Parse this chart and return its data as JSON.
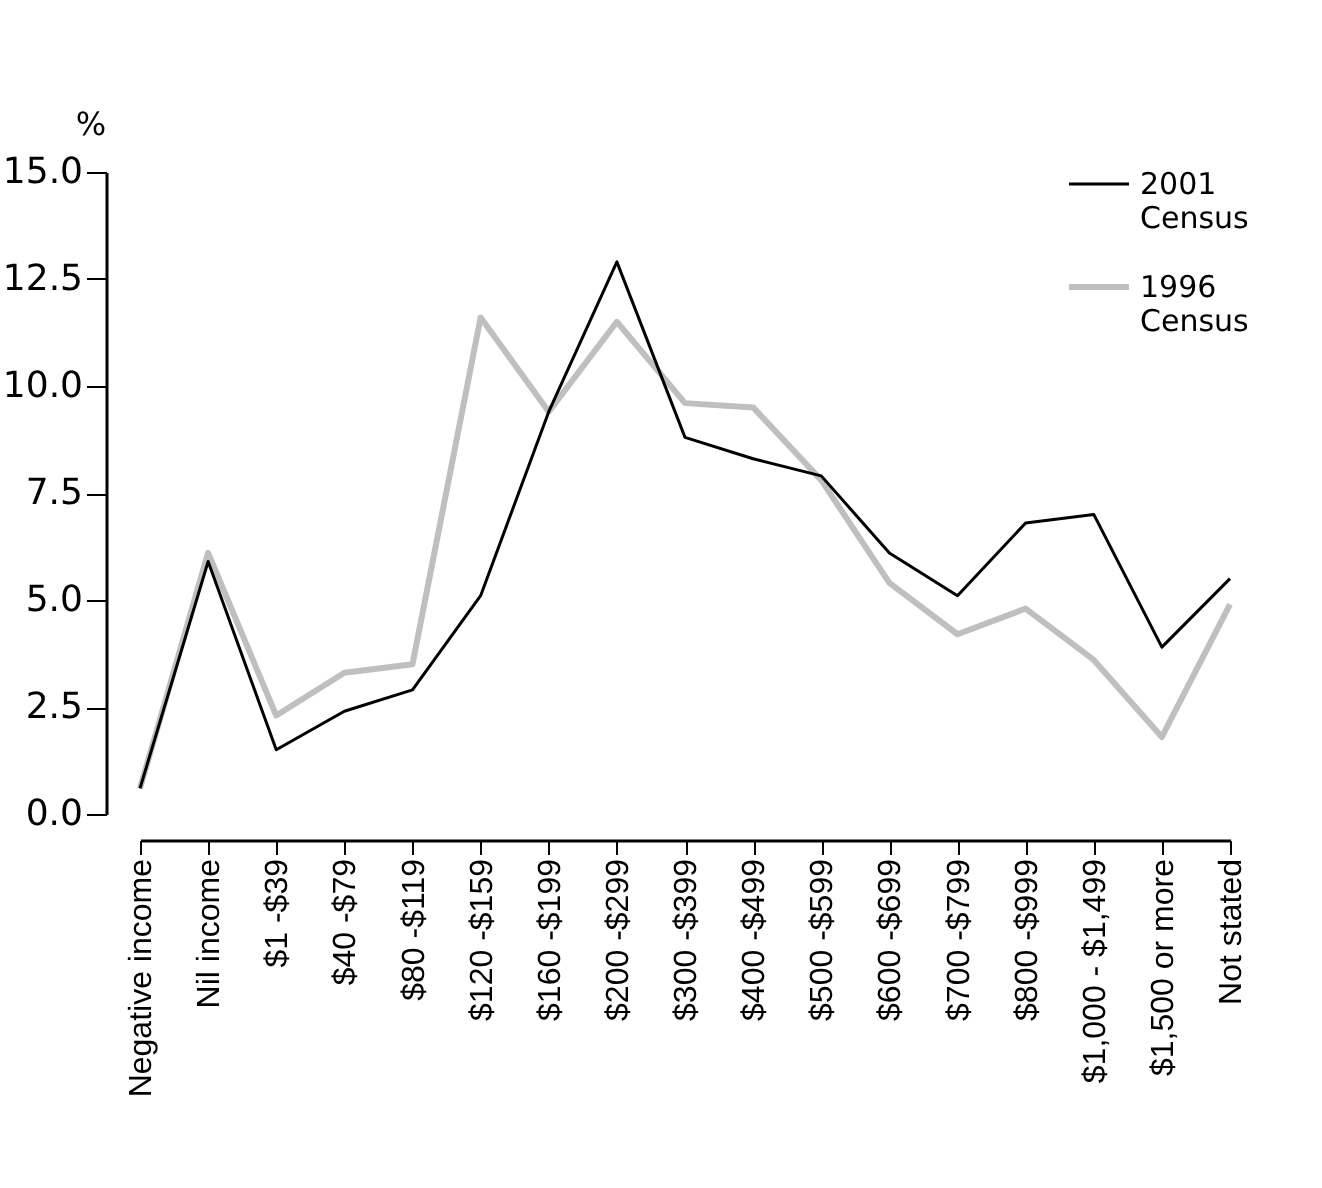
{
  "chart_data": {
    "type": "line",
    "ylabel": "%",
    "categories": [
      "Negative income",
      "Nil income",
      "$1 -$39",
      "$40 -$79",
      "$80 -$119",
      "$120 -$159",
      "$160 -$199",
      "$200 -$299",
      "$300 -$399",
      "$400 -$499",
      "$500 -$599",
      "$600 -$699",
      "$700 -$799",
      "$800 -$999",
      "$1,000 - $1,499",
      "$1,500 or more",
      "Not stated"
    ],
    "series": [
      {
        "name": "2001 Census",
        "color": "#000000",
        "values": [
          0.6,
          5.9,
          1.5,
          2.4,
          2.9,
          5.1,
          9.4,
          12.9,
          8.8,
          8.3,
          7.9,
          6.1,
          5.1,
          6.8,
          7.0,
          3.9,
          5.5
        ]
      },
      {
        "name": "1996 Census",
        "color": "#bfbfbf",
        "values": [
          0.6,
          6.1,
          2.3,
          3.3,
          3.5,
          11.6,
          9.4,
          11.5,
          9.6,
          9.5,
          7.8,
          5.4,
          4.2,
          4.8,
          3.6,
          1.8,
          4.9
        ]
      }
    ],
    "ylim": [
      0,
      15
    ],
    "yticks": [
      {
        "value": 0,
        "label": "0.0"
      },
      {
        "value": 2.5,
        "label": "2.5"
      },
      {
        "value": 5,
        "label": "5.0"
      },
      {
        "value": 7.5,
        "label": "7.5"
      },
      {
        "value": 10,
        "label": "10.0"
      },
      {
        "value": 12.5,
        "label": "12.5"
      },
      {
        "value": 15,
        "label": "15.0"
      }
    ],
    "grid": false,
    "legend": "top right",
    "line_style": "solid",
    "marker": "none"
  }
}
